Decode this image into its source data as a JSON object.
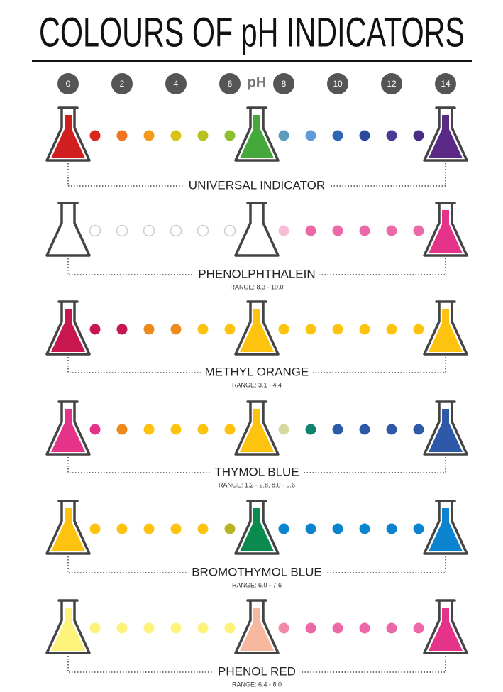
{
  "title": "COLOURS OF pH INDICATORS",
  "scale": {
    "label": "pH",
    "ticks": [
      0,
      2,
      4,
      6,
      8,
      10,
      12,
      14
    ]
  },
  "indicators": [
    {
      "name": "UNIVERSAL INDICATOR",
      "flasks": [
        "#d11f1f",
        "#45a83a",
        "#5b2a86"
      ],
      "dots": [
        "#d7261e",
        "#ee7421",
        "#f39a1d",
        "#d8c21a",
        "#b7c21d",
        "#8dbf2d",
        "#5d9bbd",
        "#5e9bd8",
        "#2f66b3",
        "#2c4a9b",
        "#4c3a96",
        "#4a2b87"
      ]
    },
    {
      "name": "PHENOLPHTHALEIN",
      "range": "RANGE: 8.3 - 10.0",
      "flasks": [
        "#ffffff",
        "#ffffff",
        "#e6338a"
      ],
      "dots": [
        "#ffffff",
        "#ffffff",
        "#ffffff",
        "#ffffff",
        "#ffffff",
        "#ffffff",
        "#f7bcd7",
        "#ec68a8",
        "#ec68a8",
        "#ec68a8",
        "#ec68a8",
        "#ec68a8"
      ]
    },
    {
      "name": "METHYL ORANGE",
      "range": "RANGE: 3.1 - 4.4",
      "flasks": [
        "#c8174f",
        "#fdc30f",
        "#fdc30f"
      ],
      "dots": [
        "#c8174f",
        "#c8174f",
        "#ee8a1c",
        "#ee8a1c",
        "#fdc30f",
        "#fdc30f",
        "#fdc30f",
        "#fdc30f",
        "#fdc30f",
        "#fdc30f",
        "#fdc30f",
        "#fdc30f"
      ]
    },
    {
      "name": "THYMOL BLUE",
      "range": "RANGE: 1.2 - 2.8, 8.0 - 9.6",
      "flasks": [
        "#e6338a",
        "#fdc30f",
        "#2e59a8"
      ],
      "dots": [
        "#e6338a",
        "#ee8a1c",
        "#fdc30f",
        "#fdc30f",
        "#fdc30f",
        "#fdc30f",
        "#d8d9a0",
        "#0f8270",
        "#2e59a8",
        "#2e59a8",
        "#2e59a8",
        "#2e59a8"
      ]
    },
    {
      "name": "BROMOTHYMOL BLUE",
      "range": "RANGE: 6.0 - 7.6",
      "flasks": [
        "#fdc30f",
        "#0b8a4f",
        "#0b84d0"
      ],
      "dots": [
        "#fdc30f",
        "#fdc30f",
        "#fdc30f",
        "#fdc30f",
        "#fdc30f",
        "#b5b523",
        "#0b84d0",
        "#0b84d0",
        "#0b84d0",
        "#0b84d0",
        "#0b84d0",
        "#0b84d0"
      ]
    },
    {
      "name": "PHENOL RED",
      "range": "RANGE: 6.4 - 8.0",
      "flasks": [
        "#fdf27a",
        "#f7b8a0",
        "#e6338a"
      ],
      "dots": [
        "#fdf27a",
        "#fdf27a",
        "#fdf27a",
        "#fdf27a",
        "#fdf27a",
        "#fdf27a",
        "#f08aa8",
        "#ec68a8",
        "#ec68a8",
        "#ec68a8",
        "#ec68a8",
        "#ec68a8"
      ]
    }
  ]
}
